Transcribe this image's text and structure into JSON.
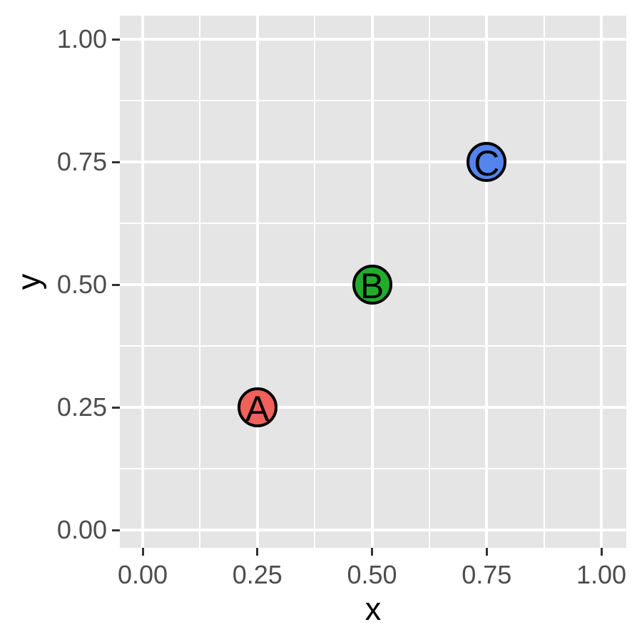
{
  "chart_data": {
    "type": "scatter",
    "title": "",
    "xlabel": "x",
    "ylabel": "y",
    "xlim": [
      0,
      1
    ],
    "ylim": [
      0,
      1
    ],
    "x_ticks": [
      0,
      0.25,
      0.5,
      0.75,
      1
    ],
    "x_tick_labels": [
      "0.00",
      "0.25",
      "0.50",
      "0.75",
      "1.00"
    ],
    "y_ticks": [
      0,
      0.25,
      0.5,
      0.75,
      1
    ],
    "y_tick_labels": [
      "0.00",
      "0.25",
      "0.50",
      "0.75",
      "1.00"
    ],
    "x_minor_ticks": [
      0.125,
      0.375,
      0.625,
      0.875
    ],
    "y_minor_ticks": [
      0.125,
      0.375,
      0.625,
      0.875
    ],
    "grid": "major and minor white gridlines on gray panel",
    "legend": "none",
    "points": [
      {
        "label": "A",
        "x": 0.25,
        "y": 0.25,
        "fill": "#F0615C"
      },
      {
        "label": "B",
        "x": 0.5,
        "y": 0.5,
        "fill": "#21AC2D"
      },
      {
        "label": "C",
        "x": 0.75,
        "y": 0.75,
        "fill": "#5484ED"
      }
    ],
    "point_outline_color": "#000000",
    "point_label_color": "#000000"
  },
  "style": {
    "figure_bg": "#FFFFFF",
    "panel_bg": "#E5E5E5",
    "grid_color": "#FFFFFF",
    "tick_color": "#333333",
    "tick_label_color": "#4D4D4D",
    "axis_title_color": "#000000"
  }
}
